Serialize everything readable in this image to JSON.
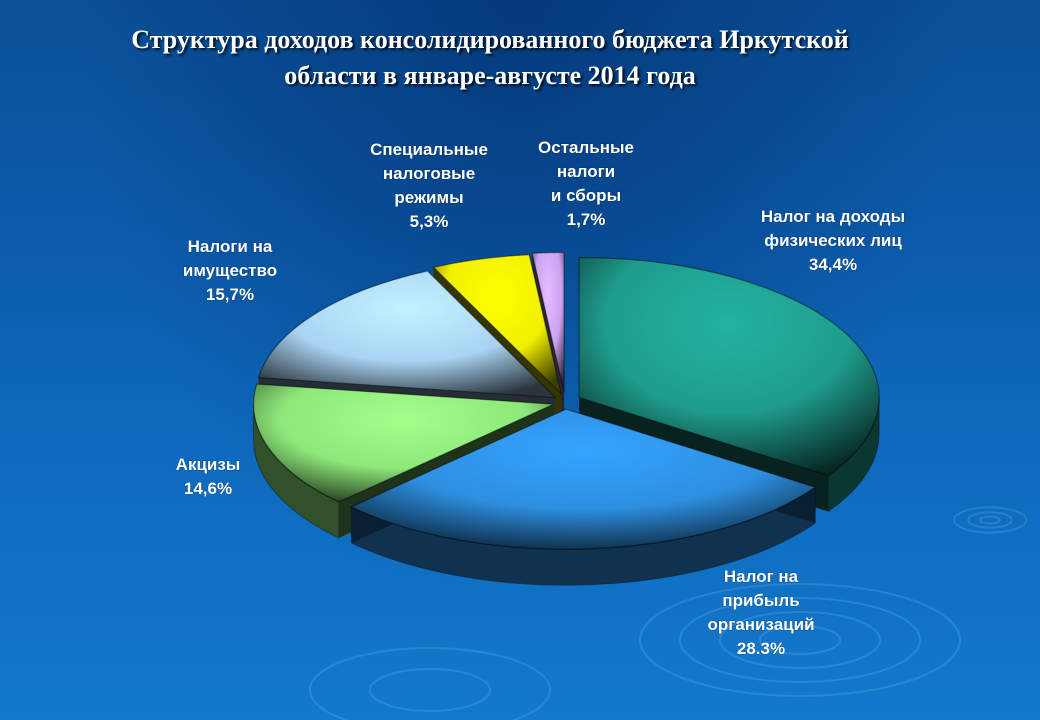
{
  "title_line1": "Структура доходов консолидированного бюджета Иркутской",
  "title_line2": "области в январе-августе 2014 года",
  "chart_data": {
    "type": "pie",
    "title": "Структура доходов консолидированного бюджета Иркутской области в январе-августе 2014 года",
    "slices": [
      {
        "name": "Налог на доходы физических лиц",
        "label_lines": [
          "Налог на доходы",
          "физических лиц"
        ],
        "value_text": "34,4%",
        "value": 34.4,
        "color": "#1e9c8c"
      },
      {
        "name": "Налог на прибыль организаций",
        "label_lines": [
          "Налог на",
          "прибыль",
          "организаций"
        ],
        "value_text": "28.3%",
        "value": 28.3,
        "color": "#2d8fe0"
      },
      {
        "name": "Акцизы",
        "label_lines": [
          "Акцизы"
        ],
        "value_text": "14,6%",
        "value": 14.6,
        "color": "#8ee87a"
      },
      {
        "name": "Налоги на имущество",
        "label_lines": [
          "Налоги на",
          "имущество"
        ],
        "value_text": "15,7%",
        "value": 15.7,
        "color": "#a9d3f2"
      },
      {
        "name": "Специальные налоговые режимы",
        "label_lines": [
          "Специальные",
          "налоговые",
          "режимы"
        ],
        "value_text": "5,3%",
        "value": 5.3,
        "color": "#f2f000"
      },
      {
        "name": "Остальные налоги и сборы",
        "label_lines": [
          "Остальные",
          "налоги",
          "и сборы"
        ],
        "value_text": "1,7%",
        "value": 1.7,
        "color": "#c9a3f0"
      }
    ]
  }
}
